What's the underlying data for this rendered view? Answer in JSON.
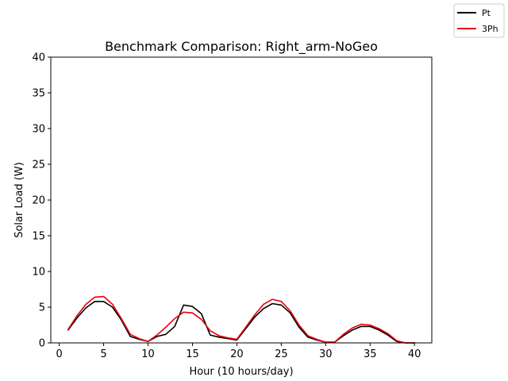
{
  "chart_data": {
    "type": "line",
    "title": "Benchmark Comparison: Right_arm-NoGeo",
    "xlabel": "Hour (10 hours/day)",
    "ylabel": "Solar Load (W)",
    "xlim": [
      -0.95,
      41.95
    ],
    "ylim": [
      0,
      40
    ],
    "xticks": [
      0,
      5,
      10,
      15,
      20,
      25,
      30,
      35,
      40
    ],
    "yticks": [
      0,
      5,
      10,
      15,
      20,
      25,
      30,
      35,
      40
    ],
    "grid": false,
    "legend_position": "top-right",
    "x": [
      1,
      2,
      3,
      4,
      5,
      6,
      7,
      8,
      9,
      10,
      11,
      12,
      13,
      14,
      15,
      16,
      17,
      18,
      19,
      20,
      21,
      22,
      23,
      24,
      25,
      26,
      27,
      28,
      29,
      30,
      31,
      32,
      33,
      34,
      35,
      36,
      37,
      38,
      39,
      40
    ],
    "series": [
      {
        "name": "Pt",
        "color": "#000000",
        "values": [
          1.8,
          3.5,
          4.9,
          5.8,
          5.8,
          5.0,
          3.2,
          0.9,
          0.5,
          0.2,
          0.9,
          1.2,
          2.3,
          5.3,
          5.1,
          4.1,
          1.1,
          0.8,
          0.6,
          0.4,
          2.0,
          3.6,
          4.8,
          5.5,
          5.3,
          4.2,
          2.2,
          0.8,
          0.4,
          0.1,
          0.1,
          1.0,
          1.8,
          2.3,
          2.3,
          1.8,
          1.1,
          0.2,
          0.0,
          0.0
        ]
      },
      {
        "name": "3Ph",
        "color": "#e8000b",
        "values": [
          1.9,
          3.8,
          5.4,
          6.4,
          6.5,
          5.4,
          3.4,
          1.2,
          0.6,
          0.2,
          1.1,
          2.2,
          3.4,
          4.3,
          4.2,
          3.3,
          1.7,
          1.0,
          0.7,
          0.5,
          2.2,
          3.9,
          5.4,
          6.1,
          5.8,
          4.5,
          2.5,
          1.0,
          0.5,
          0.1,
          0.1,
          1.2,
          2.1,
          2.6,
          2.5,
          2.0,
          1.3,
          0.3,
          0.0,
          0.0
        ]
      }
    ]
  }
}
